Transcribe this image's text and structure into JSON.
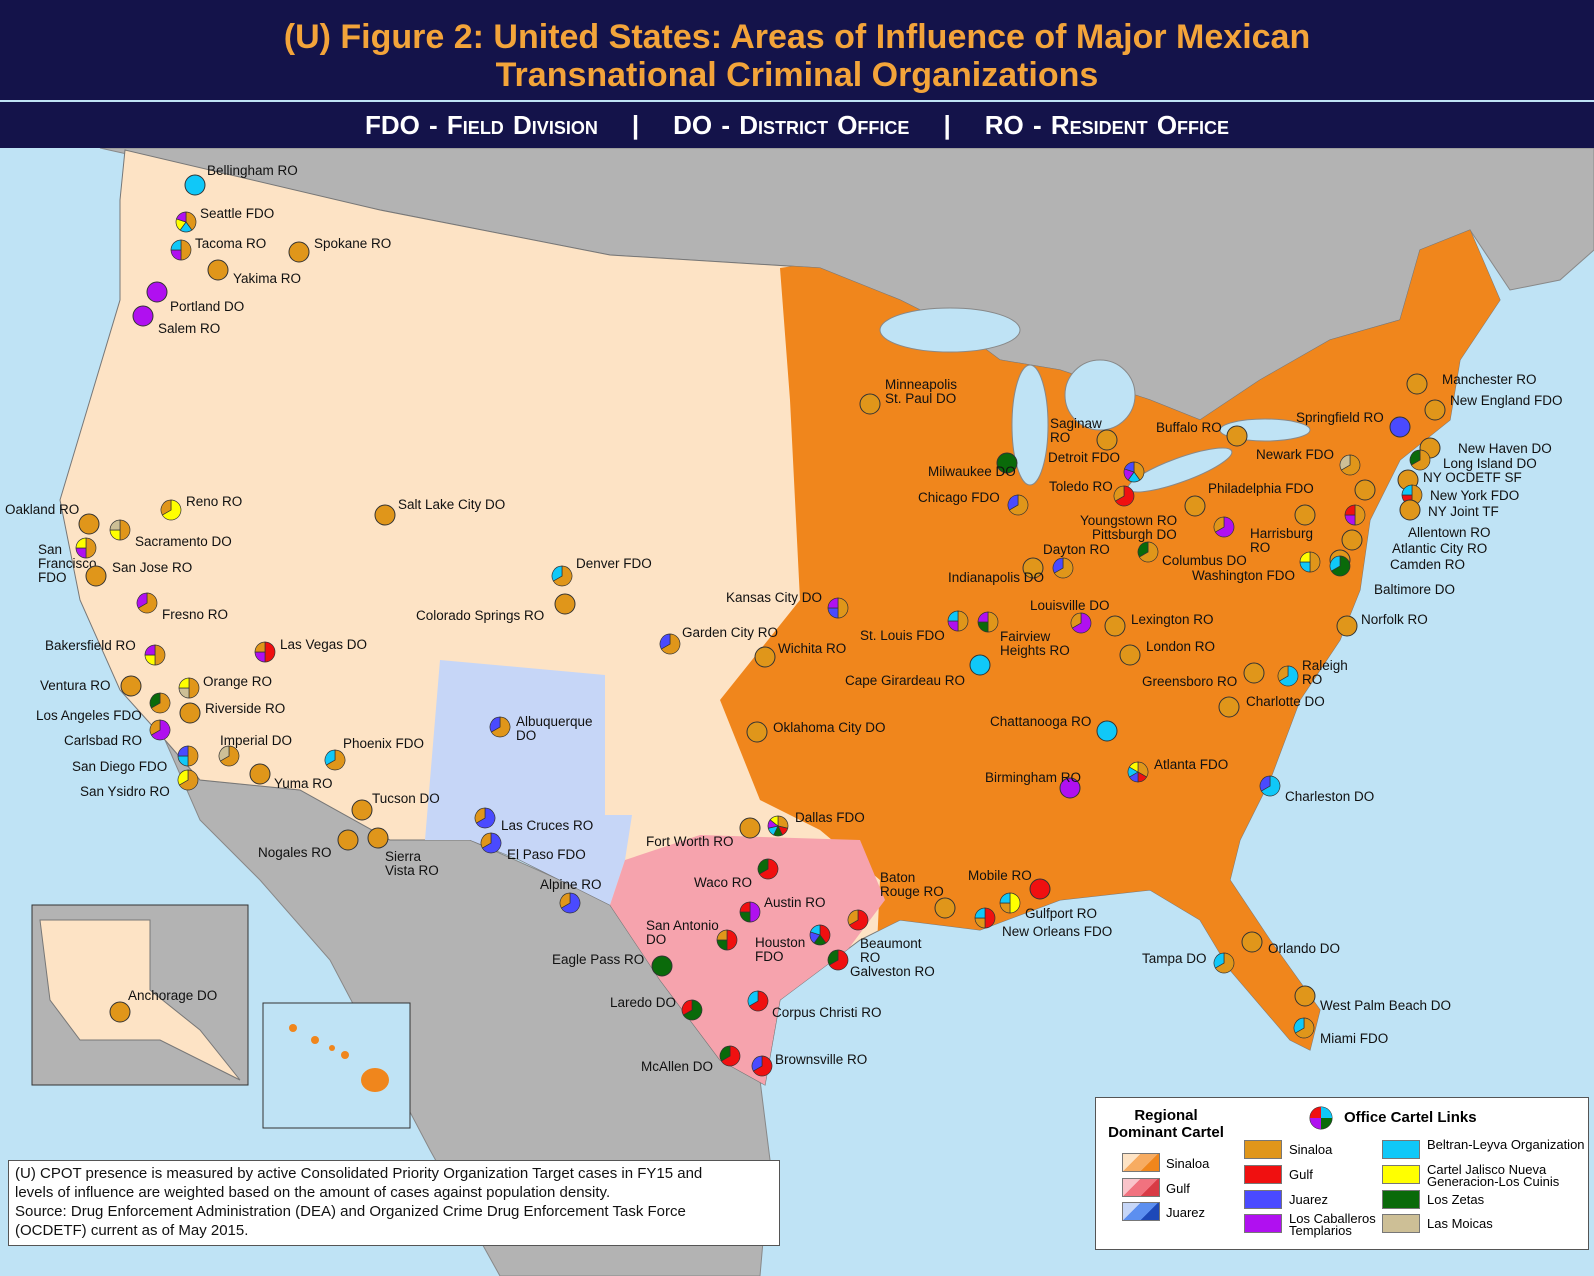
{
  "header": {
    "title_line1": "(U) Figure 2:  United States:  Areas of Influence of Major Mexican",
    "title_line2": "Transnational Criminal Organizations",
    "abbrev": [
      "FDO - Field Division",
      "DO - District Office",
      "RO - Resident Office"
    ],
    "separator": "|"
  },
  "colors": {
    "title_bg": "#14134a",
    "title_text": "#f3a43a",
    "ocean": "#bfe3f5",
    "land_foreign": "#b3b3b3",
    "region_sinaloa_low": "#fde3c5",
    "region_sinaloa_high": "#f0861c",
    "region_gulf": "#f6a3ad",
    "region_juarez": "#c6d6f7"
  },
  "cartel_colors": {
    "Sinaloa": "#e0961a",
    "Gulf": "#f01010",
    "Juarez": "#4a4aff",
    "Los Caballeros Templarios": "#b010f0",
    "Beltran-Leyva Organization": "#10c8f8",
    "Cartel Jalisco Nueva Generacion-Los Cuinis": "#ffff00",
    "Los Zetas": "#0a6a0a",
    "Las Moicas": "#cdbf96"
  },
  "offices": [
    {
      "name": "Bellingham RO",
      "cartels": [
        "Beltran-Leyva Organization"
      ]
    },
    {
      "name": "Seattle FDO",
      "cartels": [
        "Sinaloa",
        "Beltran-Leyva Organization",
        "Cartel Jalisco Nueva Generacion-Los Cuinis",
        "Los Caballeros Templarios"
      ]
    },
    {
      "name": "Tacoma RO",
      "cartels": [
        "Sinaloa",
        "Los Caballeros Templarios",
        "Beltran-Leyva Organization"
      ]
    },
    {
      "name": "Spokane RO",
      "cartels": [
        "Sinaloa"
      ]
    },
    {
      "name": "Yakima RO",
      "cartels": [
        "Sinaloa"
      ]
    },
    {
      "name": "Portland DO",
      "cartels": [
        "Los Caballeros Templarios"
      ]
    },
    {
      "name": "Salem RO",
      "cartels": [
        "Los Caballeros Templarios"
      ]
    },
    {
      "name": "Oakland RO",
      "cartels": [
        "Sinaloa"
      ]
    },
    {
      "name": "Reno RO",
      "cartels": [
        "Cartel Jalisco Nueva Generacion-Los Cuinis",
        "Sinaloa"
      ]
    },
    {
      "name": "Sacramento DO",
      "cartels": [
        "Sinaloa",
        "Cartel Jalisco Nueva Generacion-Los Cuinis",
        "Las Moicas"
      ]
    },
    {
      "name": "San\nFrancisco\nFDO",
      "cartels": [
        "Sinaloa",
        "Los Caballeros Templarios",
        "Cartel Jalisco Nueva Generacion-Los Cuinis"
      ]
    },
    {
      "name": "San Jose RO",
      "cartels": [
        "Sinaloa"
      ]
    },
    {
      "name": "Salt Lake City DO",
      "cartels": [
        "Sinaloa"
      ]
    },
    {
      "name": "Denver FDO",
      "cartels": [
        "Sinaloa",
        "Beltran-Leyva Organization"
      ]
    },
    {
      "name": "Colorado Springs RO",
      "cartels": [
        "Sinaloa"
      ]
    },
    {
      "name": "Fresno RO",
      "cartels": [
        "Sinaloa",
        "Los Caballeros Templarios"
      ]
    },
    {
      "name": "Bakersfield RO",
      "cartels": [
        "Sinaloa",
        "Cartel Jalisco Nueva Generacion-Los Cuinis",
        "Los Caballeros Templarios"
      ]
    },
    {
      "name": "Las Vegas DO",
      "cartels": [
        "Gulf",
        "Los Caballeros Templarios",
        "Sinaloa"
      ]
    },
    {
      "name": "Kansas City DO",
      "cartels": [
        "Sinaloa",
        "Juarez",
        "Los Caballeros Templarios"
      ]
    },
    {
      "name": "Garden City RO",
      "cartels": [
        "Sinaloa",
        "Juarez"
      ]
    },
    {
      "name": "Wichita RO",
      "cartels": [
        "Sinaloa"
      ]
    },
    {
      "name": "St. Louis FDO",
      "cartels": [
        "Sinaloa",
        "Los Caballeros Templarios",
        "Beltran-Leyva Organization"
      ]
    },
    {
      "name": "Louisville DO",
      "cartels": [
        "Los Caballeros Templarios",
        "Sinaloa"
      ]
    },
    {
      "name": "Fairview\nHeights RO",
      "cartels": [
        "Sinaloa",
        "Los Zetas",
        "Los Caballeros Templarios"
      ]
    },
    {
      "name": "Lexington RO",
      "cartels": [
        "Sinaloa"
      ]
    },
    {
      "name": "London RO",
      "cartels": [
        "Sinaloa"
      ]
    },
    {
      "name": "Ventura RO",
      "cartels": [
        "Sinaloa"
      ]
    },
    {
      "name": "Orange RO",
      "cartels": [
        "Sinaloa",
        "Las Moicas",
        "Cartel Jalisco Nueva Generacion-Los Cuinis"
      ]
    },
    {
      "name": "Los Angeles FDO",
      "cartels": [
        "Sinaloa",
        "Los Zetas"
      ]
    },
    {
      "name": "Riverside RO",
      "cartels": [
        "Sinaloa"
      ]
    },
    {
      "name": "Carlsbad RO",
      "cartels": [
        "Los Caballeros Templarios",
        "Sinaloa"
      ]
    },
    {
      "name": "Imperial DO",
      "cartels": [
        "Sinaloa",
        "Las Moicas"
      ]
    },
    {
      "name": "San Diego FDO",
      "cartels": [
        "Sinaloa",
        "Beltran-Leyva Organization",
        "Juarez"
      ]
    },
    {
      "name": "San Ysidro RO",
      "cartels": [
        "Sinaloa",
        "Cartel Jalisco Nueva Generacion-Los Cuinis"
      ]
    },
    {
      "name": "Yuma RO",
      "cartels": [
        "Sinaloa"
      ]
    },
    {
      "name": "Phoenix FDO",
      "cartels": [
        "Sinaloa",
        "Beltran-Leyva Organization"
      ]
    },
    {
      "name": "Tucson DO",
      "cartels": [
        "Sinaloa"
      ]
    },
    {
      "name": "Nogales RO",
      "cartels": [
        "Sinaloa"
      ]
    },
    {
      "name": "Sierra\nVista RO",
      "cartels": [
        "Sinaloa"
      ]
    },
    {
      "name": "Albuquerque\nDO",
      "cartels": [
        "Sinaloa",
        "Juarez"
      ]
    },
    {
      "name": "Las Cruces RO",
      "cartels": [
        "Juarez",
        "Sinaloa"
      ]
    },
    {
      "name": "El Paso FDO",
      "cartels": [
        "Juarez",
        "Sinaloa"
      ]
    },
    {
      "name": "Alpine RO",
      "cartels": [
        "Juarez",
        "Sinaloa"
      ]
    },
    {
      "name": "Oklahoma City DO",
      "cartels": [
        "Sinaloa"
      ]
    },
    {
      "name": "Fort Worth RO",
      "cartels": [
        "Sinaloa"
      ]
    },
    {
      "name": "Dallas FDO",
      "cartels": [
        "Sinaloa",
        "Gulf",
        "Los Zetas",
        "Beltran-Leyva Organization",
        "Los Caballeros Templarios",
        "Cartel Jalisco Nueva Generacion-Los Cuinis"
      ]
    },
    {
      "name": "Waco RO",
      "cartels": [
        "Gulf",
        "Los Zetas"
      ]
    },
    {
      "name": "Austin RO",
      "cartels": [
        "Los Caballeros Templarios",
        "Los Zetas",
        "Gulf"
      ]
    },
    {
      "name": "San Antonio\nDO",
      "cartels": [
        "Gulf",
        "Los Zetas",
        "Sinaloa"
      ]
    },
    {
      "name": "Houston\nFDO",
      "cartels": [
        "Gulf",
        "Los Zetas",
        "Juarez",
        "Beltran-Leyva Organization"
      ]
    },
    {
      "name": "Beaumont\nRO",
      "cartels": [
        "Gulf",
        "Sinaloa"
      ]
    },
    {
      "name": "Galveston RO",
      "cartels": [
        "Gulf",
        "Los Zetas"
      ]
    },
    {
      "name": "Eagle Pass RO",
      "cartels": [
        "Los Zetas"
      ]
    },
    {
      "name": "Laredo DO",
      "cartels": [
        "Los Zetas",
        "Gulf"
      ]
    },
    {
      "name": "Corpus Christi RO",
      "cartels": [
        "Gulf",
        "Beltran-Leyva Organization"
      ]
    },
    {
      "name": "McAllen DO",
      "cartels": [
        "Gulf",
        "Los Zetas"
      ]
    },
    {
      "name": "Brownsville RO",
      "cartels": [
        "Gulf",
        "Juarez"
      ]
    },
    {
      "name": "Minneapolis\nSt. Paul DO",
      "cartels": [
        "Sinaloa"
      ]
    },
    {
      "name": "Milwaukee DO",
      "cartels": [
        "Los Zetas"
      ]
    },
    {
      "name": "Chicago FDO",
      "cartels": [
        "Sinaloa",
        "Juarez"
      ]
    },
    {
      "name": "Saginaw\nRO",
      "cartels": [
        "Sinaloa"
      ]
    },
    {
      "name": "Detroit FDO",
      "cartels": [
        "Sinaloa",
        "Beltran-Leyva Organization",
        "Los Caballeros Templarios",
        "Juarez"
      ]
    },
    {
      "name": "Toledo RO",
      "cartels": [
        "Gulf",
        "Sinaloa"
      ]
    },
    {
      "name": "Buffalo RO",
      "cartels": [
        "Sinaloa"
      ]
    },
    {
      "name": "Youngstown RO",
      "cartels": [
        "Sinaloa"
      ]
    },
    {
      "name": "Pittsburgh DO",
      "cartels": [
        "Los Caballeros Templarios",
        "Sinaloa"
      ]
    },
    {
      "name": "Dayton RO",
      "cartels": [
        "Sinaloa",
        "Juarez"
      ]
    },
    {
      "name": "Indianapolis DO",
      "cartels": [
        "Sinaloa"
      ]
    },
    {
      "name": "Columbus DO",
      "cartels": [
        "Sinaloa",
        "Los Zetas"
      ]
    },
    {
      "name": "Cape Girardeau RO",
      "cartels": [
        "Beltran-Leyva Organization"
      ]
    },
    {
      "name": "Greensboro RO",
      "cartels": [
        "Sinaloa"
      ]
    },
    {
      "name": "Raleigh\nRO",
      "cartels": [
        "Beltran-Leyva Organization",
        "Sinaloa"
      ]
    },
    {
      "name": "Charlotte DO",
      "cartels": [
        "Sinaloa"
      ]
    },
    {
      "name": "Chattanooga RO",
      "cartels": [
        "Beltran-Leyva Organization"
      ]
    },
    {
      "name": "Atlanta FDO",
      "cartels": [
        "Sinaloa",
        "Gulf",
        "Juarez",
        "Beltran-Leyva Organization",
        "Cartel Jalisco Nueva Generacion-Los Cuinis"
      ]
    },
    {
      "name": "Birmingham RO",
      "cartels": [
        "Los Caballeros Templarios"
      ]
    },
    {
      "name": "Charleston DO",
      "cartels": [
        "Beltran-Leyva Organization",
        "Juarez"
      ]
    },
    {
      "name": "Mobile RO",
      "cartels": [
        "Gulf"
      ]
    },
    {
      "name": "Baton\nRouge RO",
      "cartels": [
        "Sinaloa"
      ]
    },
    {
      "name": "Gulfport RO",
      "cartels": [
        "Cartel Jalisco Nueva Generacion-Los Cuinis",
        "Sinaloa",
        "Beltran-Leyva Organization"
      ]
    },
    {
      "name": "New Orleans FDO",
      "cartels": [
        "Gulf",
        "Sinaloa",
        "Beltran-Leyva Organization"
      ]
    },
    {
      "name": "Tampa DO",
      "cartels": [
        "Sinaloa",
        "Beltran-Leyva Organization"
      ]
    },
    {
      "name": "Orlando DO",
      "cartels": [
        "Sinaloa"
      ]
    },
    {
      "name": "West Palm Beach DO",
      "cartels": [
        "Sinaloa"
      ]
    },
    {
      "name": "Miami FDO",
      "cartels": [
        "Sinaloa",
        "Beltran-Leyva Organization"
      ]
    },
    {
      "name": "Manchester RO",
      "cartels": [
        "Sinaloa"
      ]
    },
    {
      "name": "New England FDO",
      "cartels": [
        "Sinaloa"
      ]
    },
    {
      "name": "Springfield RO",
      "cartels": [
        "Juarez"
      ]
    },
    {
      "name": "New Haven DO",
      "cartels": [
        "Sinaloa"
      ]
    },
    {
      "name": "Long Island DO",
      "cartels": [
        "Sinaloa",
        "Los Zetas"
      ]
    },
    {
      "name": "NY OCDETF SF",
      "cartels": [
        "Sinaloa"
      ]
    },
    {
      "name": "New York FDO",
      "cartels": [
        "Sinaloa",
        "Gulf",
        "Beltran-Leyva Organization"
      ]
    },
    {
      "name": "NY Joint TF",
      "cartels": [
        "Sinaloa"
      ]
    },
    {
      "name": "Newark FDO",
      "cartels": [
        "Sinaloa",
        "Las Moicas"
      ]
    },
    {
      "name": "Philadelphia FDO",
      "cartels": [
        "Sinaloa"
      ]
    },
    {
      "name": "Allentown RO",
      "cartels": [
        "Sinaloa",
        "Los Caballeros Templarios",
        "Gulf"
      ]
    },
    {
      "name": "Harrisburg\nRO",
      "cartels": [
        "Sinaloa"
      ]
    },
    {
      "name": "Atlantic City RO",
      "cartels": [
        "Sinaloa"
      ]
    },
    {
      "name": "Camden RO",
      "cartels": [
        "Sinaloa"
      ]
    },
    {
      "name": "Washington FDO",
      "cartels": [
        "Sinaloa",
        "Beltran-Leyva Organization",
        "Cartel Jalisco Nueva Generacion-Los Cuinis"
      ]
    },
    {
      "name": "Baltimore DO",
      "cartels": [
        "Los Zetas",
        "Beltran-Leyva Organization"
      ]
    },
    {
      "name": "Norfolk RO",
      "cartels": [
        "Sinaloa"
      ]
    },
    {
      "name": "Anchorage DO",
      "cartels": [
        "Sinaloa"
      ]
    }
  ],
  "legend": {
    "regional_title": "Regional Dominant Cartel",
    "regional": [
      "Sinaloa",
      "Gulf",
      "Juarez"
    ],
    "links_title": "Office Cartel Links",
    "links": [
      "Sinaloa",
      "Gulf",
      "Juarez",
      "Los Caballeros Templarios",
      "Beltran-Leyva Organization",
      "Cartel Jalisco Nueva Generacion-Los Cuinis",
      "Los Zetas",
      "Las Moicas"
    ]
  },
  "footnote": {
    "line1": "(U) CPOT presence is measured by active Consolidated Priority Organization Target cases in FY15 and",
    "line2": "levels of influence are weighted based on the amount of cases against population density.",
    "line3": "Source: Drug Enforcement Administration (DEA) and Organized Crime Drug Enforcement Task Force",
    "line4": "(OCDETF) current as of May 2015."
  }
}
